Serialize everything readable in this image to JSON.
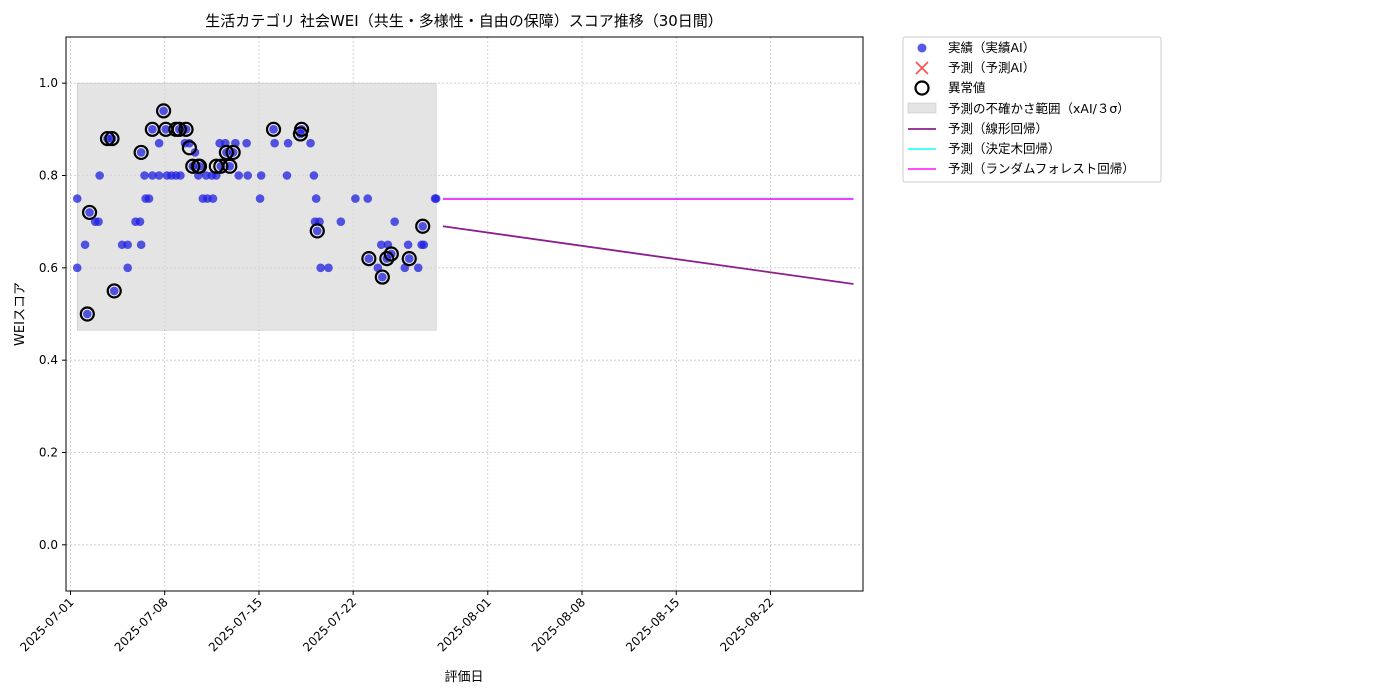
{
  "chart_data": {
    "type": "scatter",
    "title": "生活カテゴリ 社会WEI（共生・多様性・自由の保障）スコア推移（30日間）",
    "xlabel": "評価日",
    "ylabel": "WEIスコア",
    "x_range": [
      "2025-06-30T16:00",
      "2025-08-28T21:00"
    ],
    "ylim": [
      -0.1,
      1.1
    ],
    "y_ticks": [
      0.0,
      0.2,
      0.4,
      0.6,
      0.8,
      1.0
    ],
    "x_ticks": [
      "2025-07-01",
      "2025-07-08",
      "2025-07-15",
      "2025-07-22",
      "2025-08-01",
      "2025-08-08",
      "2025-08-15",
      "2025-08-22"
    ],
    "grid": true,
    "legend_position": "outside-top-right",
    "colors": {
      "actual": "#1f1fe0",
      "predicted": "#ff2020",
      "outlier": "#000000",
      "band": "#d9d9d9",
      "linear": "#8b1f8e",
      "tree": "#33ffff",
      "forest": "#ff33ff"
    },
    "legend": {
      "actual": "実績（実績AI）",
      "predicted": "予測（予測AI）",
      "outliers": "異常値",
      "band": "予測の不確かさ範囲（xAI/３σ）",
      "linear": "予測（線形回帰）",
      "tree": "予測（決定木回帰）",
      "forest": "予測（ランダムフォレスト回帰）"
    },
    "uncertainty_band": {
      "x_start": "2025-07-01T12:00",
      "x_end": "2025-07-28T04:00",
      "y_low": 0.465,
      "y_high": 1.0
    },
    "series": [
      {
        "name": "実績（実績AI）",
        "points": [
          [
            "2025-07-01T12:00",
            0.6
          ],
          [
            "2025-07-01T12:00",
            0.75
          ],
          [
            "2025-07-02T02:00",
            0.65
          ],
          [
            "2025-07-02T06:00",
            0.5
          ],
          [
            "2025-07-02T10:00",
            0.72
          ],
          [
            "2025-07-02T20:00",
            0.7
          ],
          [
            "2025-07-03T02:00",
            0.7
          ],
          [
            "2025-07-03T04:00",
            0.8
          ],
          [
            "2025-07-03T18:00",
            0.88
          ],
          [
            "2025-07-04T02:00",
            0.88
          ],
          [
            "2025-07-04T06:00",
            0.55
          ],
          [
            "2025-07-04T20:00",
            0.65
          ],
          [
            "2025-07-05T06:00",
            0.6
          ],
          [
            "2025-07-05T06:00",
            0.65
          ],
          [
            "2025-07-05T20:00",
            0.7
          ],
          [
            "2025-07-06T04:00",
            0.7
          ],
          [
            "2025-07-06T06:00",
            0.65
          ],
          [
            "2025-07-06T06:00",
            0.85
          ],
          [
            "2025-07-06T12:00",
            0.8
          ],
          [
            "2025-07-06T14:00",
            0.75
          ],
          [
            "2025-07-06T20:00",
            0.75
          ],
          [
            "2025-07-07T02:00",
            0.9
          ],
          [
            "2025-07-07T02:00",
            0.8
          ],
          [
            "2025-07-07T14:00",
            0.87
          ],
          [
            "2025-07-07T14:00",
            0.8
          ],
          [
            "2025-07-07T22:00",
            0.94
          ],
          [
            "2025-07-08T02:00",
            0.9
          ],
          [
            "2025-07-08T04:00",
            0.8
          ],
          [
            "2025-07-08T12:00",
            0.8
          ],
          [
            "2025-07-08T20:00",
            0.8
          ],
          [
            "2025-07-09T02:00",
            0.9
          ],
          [
            "2025-07-09T04:00",
            0.8
          ],
          [
            "2025-07-09T12:00",
            0.87
          ],
          [
            "2025-07-09T14:00",
            0.9
          ],
          [
            "2025-07-09T20:00",
            0.87
          ],
          [
            "2025-07-10T02:00",
            0.82
          ],
          [
            "2025-07-10T06:00",
            0.85
          ],
          [
            "2025-07-10T12:00",
            0.8
          ],
          [
            "2025-07-10T14:00",
            0.82
          ],
          [
            "2025-07-10T20:00",
            0.75
          ],
          [
            "2025-07-11T02:00",
            0.8
          ],
          [
            "2025-07-11T04:00",
            0.75
          ],
          [
            "2025-07-11T12:00",
            0.8
          ],
          [
            "2025-07-11T14:00",
            0.75
          ],
          [
            "2025-07-11T20:00",
            0.8
          ],
          [
            "2025-07-12T02:00",
            0.87
          ],
          [
            "2025-07-12T04:00",
            0.82
          ],
          [
            "2025-07-12T12:00",
            0.87
          ],
          [
            "2025-07-12T14:00",
            0.85
          ],
          [
            "2025-07-12T20:00",
            0.82
          ],
          [
            "2025-07-13T02:00",
            0.85
          ],
          [
            "2025-07-13T06:00",
            0.87
          ],
          [
            "2025-07-13T12:00",
            0.8
          ],
          [
            "2025-07-14T02:00",
            0.87
          ],
          [
            "2025-07-14T04:00",
            0.8
          ],
          [
            "2025-07-15T02:00",
            0.75
          ],
          [
            "2025-07-15T04:00",
            0.8
          ],
          [
            "2025-07-16T02:00",
            0.9
          ],
          [
            "2025-07-16T04:00",
            0.87
          ],
          [
            "2025-07-17T02:00",
            0.8
          ],
          [
            "2025-07-17T04:00",
            0.87
          ],
          [
            "2025-07-18T02:00",
            0.89
          ],
          [
            "2025-07-18T04:00",
            0.9
          ],
          [
            "2025-07-18T20:00",
            0.87
          ],
          [
            "2025-07-19T02:00",
            0.8
          ],
          [
            "2025-07-19T04:00",
            0.7
          ],
          [
            "2025-07-19T06:00",
            0.75
          ],
          [
            "2025-07-19T08:00",
            0.68
          ],
          [
            "2025-07-19T12:00",
            0.7
          ],
          [
            "2025-07-19T14:00",
            0.6
          ],
          [
            "2025-07-20T04:00",
            0.6
          ],
          [
            "2025-07-21T02:00",
            0.7
          ],
          [
            "2025-07-22T04:00",
            0.75
          ],
          [
            "2025-07-23T02:00",
            0.75
          ],
          [
            "2025-07-23T04:00",
            0.62
          ],
          [
            "2025-07-23T20:00",
            0.6
          ],
          [
            "2025-07-24T02:00",
            0.65
          ],
          [
            "2025-07-24T04:00",
            0.58
          ],
          [
            "2025-07-24T12:00",
            0.62
          ],
          [
            "2025-07-24T14:00",
            0.65
          ],
          [
            "2025-07-24T20:00",
            0.63
          ],
          [
            "2025-07-25T02:00",
            0.7
          ],
          [
            "2025-07-25T20:00",
            0.6
          ],
          [
            "2025-07-26T02:00",
            0.65
          ],
          [
            "2025-07-26T04:00",
            0.62
          ],
          [
            "2025-07-26T20:00",
            0.6
          ],
          [
            "2025-07-27T02:00",
            0.65
          ],
          [
            "2025-07-27T04:00",
            0.69
          ],
          [
            "2025-07-27T06:00",
            0.65
          ],
          [
            "2025-07-28T02:00",
            0.75
          ],
          [
            "2025-07-28T04:00",
            0.75
          ]
        ]
      },
      {
        "name": "異常値",
        "points": [
          [
            "2025-07-02T06:00",
            0.5
          ],
          [
            "2025-07-02T10:00",
            0.72
          ],
          [
            "2025-07-03T18:00",
            0.88
          ],
          [
            "2025-07-04T02:00",
            0.88
          ],
          [
            "2025-07-04T06:00",
            0.55
          ],
          [
            "2025-07-06T06:00",
            0.85
          ],
          [
            "2025-07-07T02:00",
            0.9
          ],
          [
            "2025-07-07T22:00",
            0.94
          ],
          [
            "2025-07-08T02:00",
            0.9
          ],
          [
            "2025-07-08T20:00",
            0.9
          ],
          [
            "2025-07-09T02:00",
            0.9
          ],
          [
            "2025-07-09T14:00",
            0.9
          ],
          [
            "2025-07-09T20:00",
            0.86
          ],
          [
            "2025-07-10T02:00",
            0.82
          ],
          [
            "2025-07-10T12:00",
            0.82
          ],
          [
            "2025-07-10T14:00",
            0.82
          ],
          [
            "2025-07-11T20:00",
            0.82
          ],
          [
            "2025-07-12T04:00",
            0.82
          ],
          [
            "2025-07-12T14:00",
            0.85
          ],
          [
            "2025-07-12T20:00",
            0.82
          ],
          [
            "2025-07-13T02:00",
            0.85
          ],
          [
            "2025-07-16T02:00",
            0.9
          ],
          [
            "2025-07-18T02:00",
            0.89
          ],
          [
            "2025-07-18T04:00",
            0.9
          ],
          [
            "2025-07-19T08:00",
            0.68
          ],
          [
            "2025-07-23T04:00",
            0.62
          ],
          [
            "2025-07-24T04:00",
            0.58
          ],
          [
            "2025-07-24T12:00",
            0.62
          ],
          [
            "2025-07-24T20:00",
            0.63
          ],
          [
            "2025-07-26T04:00",
            0.62
          ],
          [
            "2025-07-27T04:00",
            0.69
          ]
        ]
      },
      {
        "name": "予測（線形回帰）",
        "line": [
          [
            "2025-07-28T16:00",
            0.69
          ],
          [
            "2025-08-28T04:00",
            0.565
          ]
        ]
      },
      {
        "name": "予測（決定木回帰）",
        "line": [
          [
            "2025-07-28T16:00",
            0.75
          ],
          [
            "2025-08-28T04:00",
            0.75
          ]
        ]
      },
      {
        "name": "予測（ランダムフォレスト回帰）",
        "line": [
          [
            "2025-07-28T16:00",
            0.749
          ],
          [
            "2025-08-28T04:00",
            0.749
          ]
        ]
      }
    ]
  }
}
